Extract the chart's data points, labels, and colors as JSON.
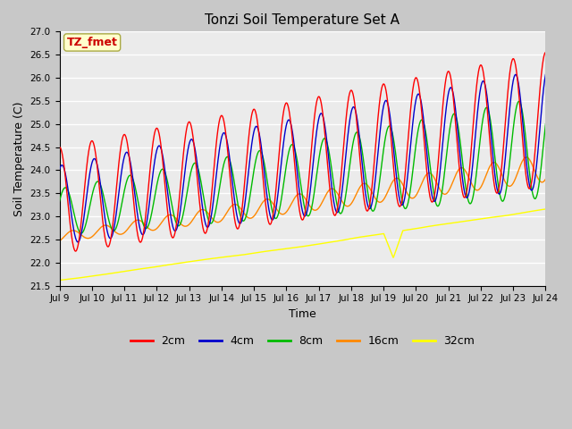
{
  "title": "Tonzi Soil Temperature Set A",
  "xlabel": "Time",
  "ylabel": "Soil Temperature (C)",
  "ylim": [
    21.5,
    27.0
  ],
  "yticks": [
    21.5,
    22.0,
    22.5,
    23.0,
    23.5,
    24.0,
    24.5,
    25.0,
    25.5,
    26.0,
    26.5,
    27.0
  ],
  "xtick_labels": [
    "Jul 9",
    "Jul 10",
    "Jul 11",
    "Jul 12",
    "Jul 13",
    "Jul 14",
    "Jul 15",
    "Jul 16",
    "Jul 17",
    "Jul 18",
    "Jul 19",
    "Jul 20",
    "Jul 21",
    "Jul 22",
    "Jul 23",
    "Jul 24"
  ],
  "colors": {
    "2cm": "#ff0000",
    "4cm": "#0000cc",
    "8cm": "#00bb00",
    "16cm": "#ff8800",
    "32cm": "#ffff00"
  },
  "annotation_text": "TZ_fmet",
  "annotation_color": "#cc0000",
  "annotation_bg": "#ffffcc",
  "annotation_edge": "#aaaa44",
  "plot_bg_color": "#ebebeb",
  "fig_bg_color": "#c8c8c8",
  "grid_color": "#ffffff",
  "n_points": 1500,
  "total_days": 15.0
}
